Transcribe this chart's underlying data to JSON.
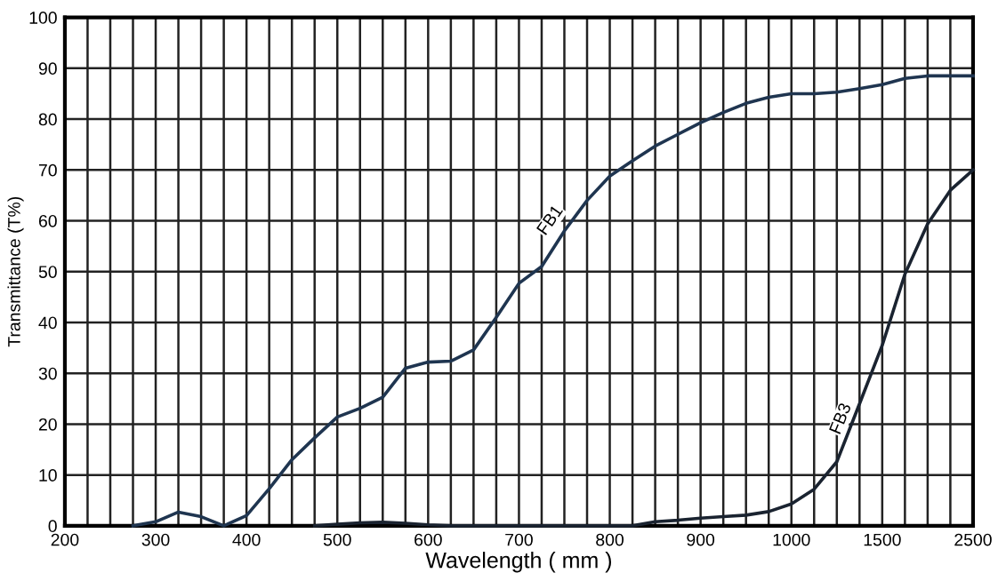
{
  "chart_data": {
    "type": "line",
    "xlabel": "Wavelength ( mm )",
    "ylabel": "Transmittance (T%)",
    "categories": [
      "200",
      null,
      null,
      null,
      "300",
      null,
      null,
      null,
      "400",
      null,
      null,
      null,
      "500",
      null,
      null,
      null,
      "600",
      null,
      null,
      null,
      "700",
      null,
      null,
      null,
      "800",
      null,
      null,
      null,
      "900",
      null,
      null,
      null,
      "1000",
      null,
      null,
      null,
      "1500",
      null,
      null,
      null,
      "2500"
    ],
    "ylim": [
      0,
      100
    ],
    "yticks": [
      0,
      10,
      20,
      30,
      40,
      50,
      60,
      70,
      80,
      90,
      100
    ],
    "grid": true,
    "marker": "none",
    "line_style": "solid",
    "series": [
      {
        "color": "#1f3550",
        "values": [
          null,
          null,
          null,
          0,
          0.8,
          2.7,
          1.8,
          0,
          2,
          7.3,
          13,
          17.3,
          21.4,
          23.1,
          25.3,
          31,
          32.2,
          32.4,
          34.6,
          41,
          47.7,
          51,
          58,
          64,
          68.8,
          71.8,
          74.7,
          77,
          79.3,
          81.3,
          83.1,
          84.3,
          85,
          85,
          85.3,
          86,
          86.8,
          88,
          88.5,
          88.5,
          88.5
        ]
      },
      {
        "color": "#1a2330",
        "values": [
          null,
          null,
          null,
          null,
          null,
          null,
          null,
          null,
          null,
          null,
          null,
          0,
          0.3,
          0.6,
          0.7,
          0.5,
          0.2,
          0,
          0,
          0,
          0,
          0,
          0,
          0,
          0,
          0,
          0.8,
          1.1,
          1.5,
          1.8,
          2.1,
          2.8,
          4.3,
          7.2,
          12.6,
          24,
          35.5,
          49.5,
          59.4,
          66,
          70
        ]
      }
    ],
    "annotations": [
      "FB1",
      "FB3"
    ]
  }
}
